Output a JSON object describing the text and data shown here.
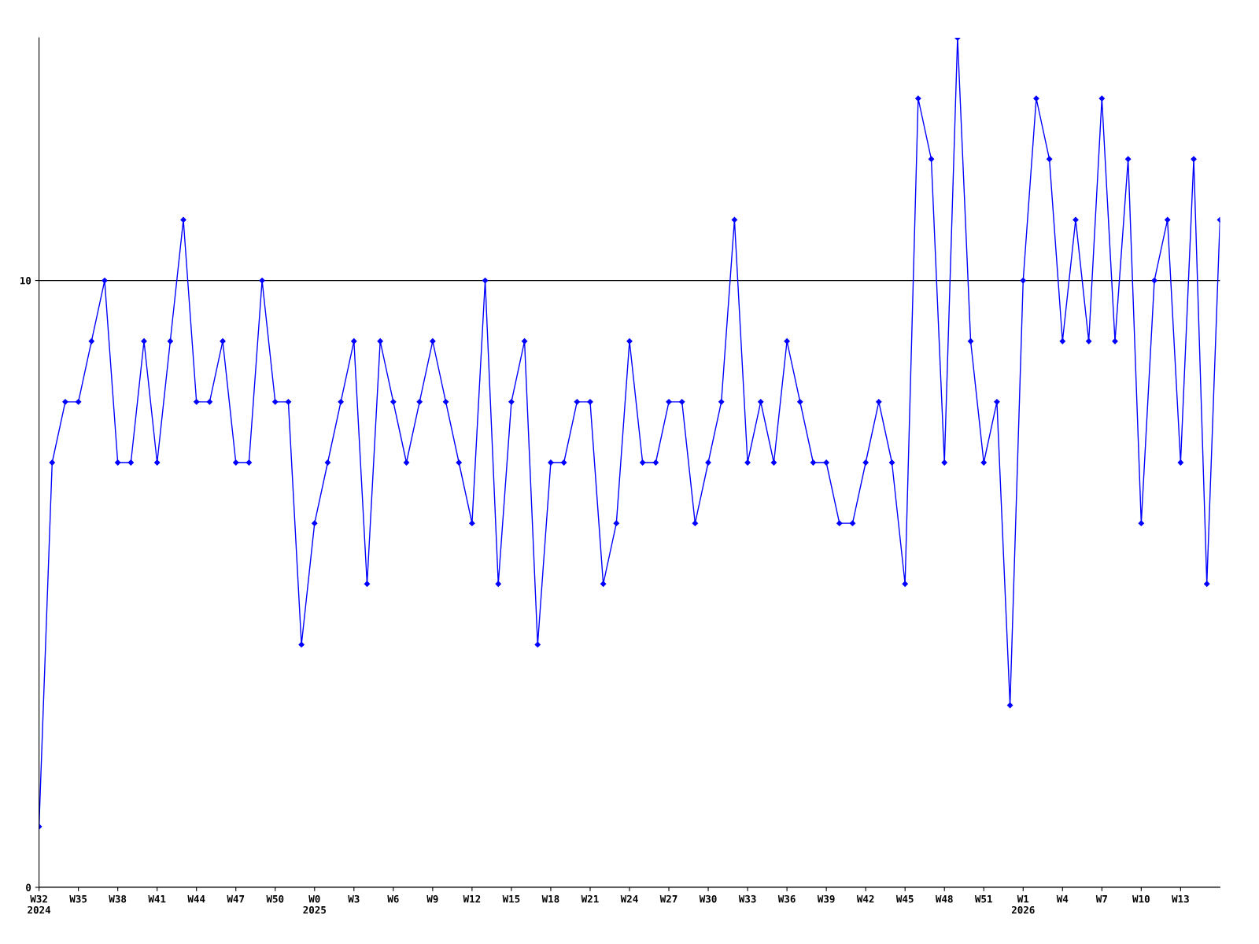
{
  "chart_data": {
    "type": "line",
    "categories": [
      "W32\n2024",
      null,
      null,
      "W35",
      null,
      null,
      "W38",
      null,
      null,
      "W41",
      null,
      null,
      "W44",
      null,
      null,
      "W47",
      null,
      null,
      "W50",
      null,
      null,
      "W0\n2025",
      null,
      null,
      "W3",
      null,
      null,
      "W6",
      null,
      null,
      "W9",
      null,
      null,
      "W12",
      null,
      null,
      "W15",
      null,
      null,
      "W18",
      null,
      null,
      "W21",
      null,
      null,
      "W24",
      null,
      null,
      "W27",
      null,
      null,
      "W30",
      null,
      null,
      "W33",
      null,
      null,
      "W36",
      null,
      null,
      "W39",
      null,
      null,
      "W42",
      null,
      null,
      "W45",
      null,
      null,
      "W48",
      null,
      null,
      "W51",
      null,
      null,
      "W1\n2026",
      null,
      null,
      "W4",
      null,
      null,
      "W7",
      null,
      null,
      "W10",
      null,
      null,
      "W13",
      null,
      null,
      null
    ],
    "series": [
      {
        "color": "#0000ff",
        "values": [
          1,
          7,
          8,
          8,
          9,
          10,
          7,
          7,
          9,
          7,
          9,
          11,
          8,
          8,
          9,
          7,
          7,
          10,
          8,
          8,
          4,
          6,
          7,
          8,
          9,
          5,
          9,
          8,
          7,
          8,
          9,
          8,
          7,
          6,
          10,
          5,
          8,
          9,
          4,
          7,
          7,
          8,
          8,
          5,
          6,
          9,
          7,
          7,
          8,
          8,
          6,
          7,
          8,
          11,
          7,
          8,
          7,
          9,
          8,
          7,
          7,
          6,
          6,
          7,
          8,
          7,
          5,
          13,
          12,
          7,
          14,
          9,
          7,
          8,
          3,
          10,
          13,
          12,
          9,
          11,
          9,
          13,
          9,
          12,
          6,
          10,
          11,
          7,
          12,
          5,
          11
        ]
      }
    ],
    "ylim": [
      0,
      14
    ],
    "yticks": [
      0,
      10
    ],
    "grid": "y",
    "marker": "diamond",
    "line_style": "solid"
  }
}
